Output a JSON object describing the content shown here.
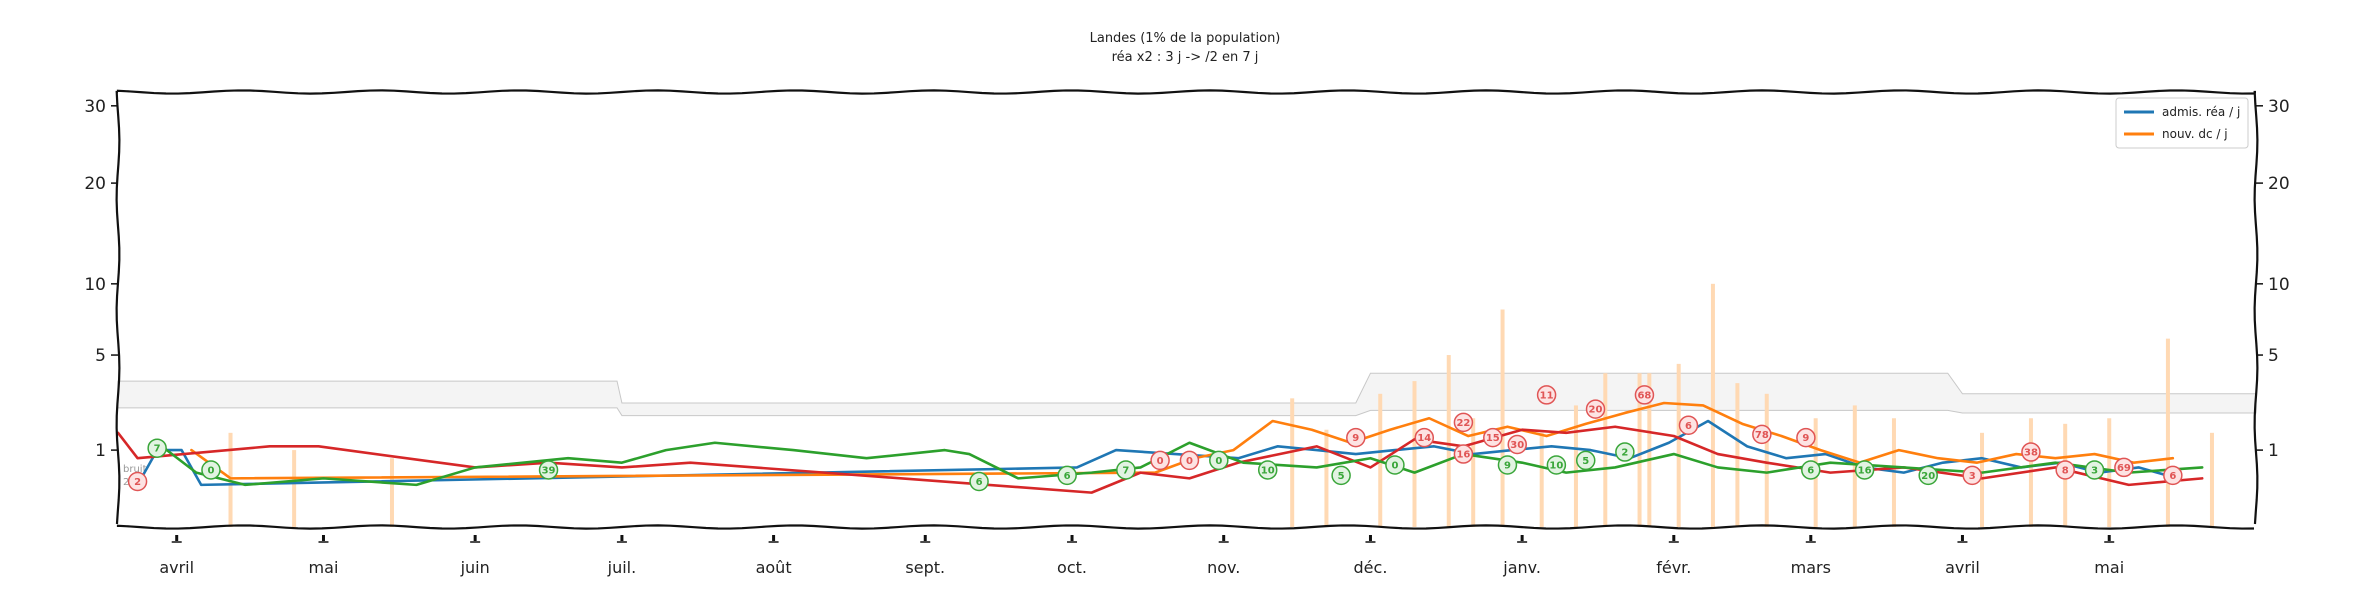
{
  "chart_data": {
    "type": "line",
    "title": "Landes (1% de la population)",
    "subtitle": "réa x2 : 3 j -> /2 en 7 j",
    "xlabel": "",
    "ylabel": "",
    "y_scale": "sqrt",
    "ylim": [
      0,
      32
    ],
    "y_ticks": [
      1,
      5,
      10,
      20,
      30
    ],
    "x_range": [
      "2020-03-20",
      "2021-05-31"
    ],
    "x_ticks": [
      {
        "date": "2020-04-01",
        "label": "avril"
      },
      {
        "date": "2020-05-01",
        "label": "mai"
      },
      {
        "date": "2020-06-01",
        "label": "juin"
      },
      {
        "date": "2020-07-01",
        "label": "juil."
      },
      {
        "date": "2020-08-01",
        "label": "août"
      },
      {
        "date": "2020-09-01",
        "label": "sept."
      },
      {
        "date": "2020-10-01",
        "label": "oct."
      },
      {
        "date": "2020-11-01",
        "label": "nov."
      },
      {
        "date": "2020-12-01",
        "label": "déc."
      },
      {
        "date": "2021-01-01",
        "label": "janv."
      },
      {
        "date": "2021-02-01",
        "label": "févr."
      },
      {
        "date": "2021-03-01",
        "label": "mars"
      },
      {
        "date": "2021-04-01",
        "label": "avril"
      },
      {
        "date": "2021-05-01",
        "label": "mai"
      }
    ],
    "noise_band_labels": [
      "bruit",
      "25%"
    ],
    "noise_band": {
      "dates": [
        "2020-03-20",
        "2020-06-30",
        "2020-07-01",
        "2020-11-28",
        "2020-12-01",
        "2021-03-29",
        "2021-04-01",
        "2021-05-31"
      ],
      "upper": [
        3.6,
        3.6,
        2.6,
        2.6,
        4.0,
        4.0,
        3.0,
        3.0
      ],
      "lower": [
        2.4,
        2.4,
        2.1,
        2.1,
        2.3,
        2.3,
        2.2,
        2.2
      ]
    },
    "legend_position": "top-right",
    "grid": false,
    "series": [
      {
        "name": "admis. réa / j",
        "color": "#1f77b4",
        "dates": [
          "2020-03-24",
          "2020-03-28",
          "2020-04-02",
          "2020-04-06",
          "2020-10-02",
          "2020-10-10",
          "2020-11-04",
          "2020-11-12",
          "2020-11-20",
          "2020-11-28",
          "2020-12-06",
          "2020-12-14",
          "2020-12-22",
          "2020-12-30",
          "2021-01-07",
          "2021-01-15",
          "2021-01-23",
          "2021-01-31",
          "2021-02-08",
          "2021-02-16",
          "2021-02-24",
          "2021-03-04",
          "2021-03-12",
          "2021-03-20",
          "2021-03-28",
          "2021-04-05",
          "2021-04-13",
          "2021-04-21",
          "2021-04-29",
          "2021-05-07",
          "2021-05-15"
        ],
        "values": [
          0.3,
          1.0,
          1.0,
          0.3,
          0.6,
          1.0,
          0.8,
          1.1,
          1.0,
          0.9,
          1.0,
          1.1,
          0.9,
          1.0,
          1.1,
          1.0,
          0.8,
          1.2,
          1.9,
          1.1,
          0.8,
          0.9,
          0.6,
          0.5,
          0.7,
          0.8,
          0.6,
          0.7,
          0.5,
          0.6,
          0.4
        ]
      },
      {
        "name": "nouv. dc / j",
        "color": "#ff7f0e",
        "dates": [
          "2020-04-04",
          "2020-04-12",
          "2020-10-18",
          "2020-10-26",
          "2020-11-03",
          "2020-11-11",
          "2020-11-19",
          "2020-11-27",
          "2020-12-05",
          "2020-12-13",
          "2020-12-21",
          "2020-12-29",
          "2021-01-06",
          "2021-01-14",
          "2021-01-22",
          "2021-01-30",
          "2021-02-07",
          "2021-02-15",
          "2021-02-23",
          "2021-03-03",
          "2021-03-11",
          "2021-03-19",
          "2021-03-27",
          "2021-04-04",
          "2021-04-12",
          "2021-04-20",
          "2021-04-28",
          "2021-05-06",
          "2021-05-14"
        ],
        "values": [
          1.0,
          0.4,
          0.5,
          0.8,
          1.0,
          1.9,
          1.6,
          1.2,
          1.6,
          2.0,
          1.4,
          1.7,
          1.4,
          1.8,
          2.2,
          2.6,
          2.5,
          1.8,
          1.4,
          1.0,
          0.7,
          1.0,
          0.8,
          0.7,
          0.9,
          0.8,
          0.9,
          0.7,
          0.8
        ]
      },
      {
        "name": "",
        "color": "#d62728",
        "dates": [
          "2020-03-20",
          "2020-03-24",
          "2020-04-20",
          "2020-04-30",
          "2020-06-01",
          "2020-06-16",
          "2020-07-01",
          "2020-07-15",
          "2020-10-05",
          "2020-10-15",
          "2020-10-25",
          "2020-11-04",
          "2020-11-20",
          "2020-12-01",
          "2020-12-10",
          "2020-12-20",
          "2021-01-01",
          "2021-01-10",
          "2021-01-20",
          "2021-02-01",
          "2021-02-10",
          "2021-02-20",
          "2021-03-05",
          "2021-03-20",
          "2021-04-05",
          "2021-04-20",
          "2021-05-05",
          "2021-05-20"
        ],
        "values": [
          1.5,
          0.8,
          1.1,
          1.1,
          0.6,
          0.7,
          0.6,
          0.7,
          0.2,
          0.5,
          0.4,
          0.7,
          1.1,
          0.6,
          1.3,
          1.1,
          1.6,
          1.5,
          1.7,
          1.4,
          0.9,
          0.7,
          0.5,
          0.6,
          0.4,
          0.6,
          0.3,
          0.4
        ]
      },
      {
        "name": "",
        "color": "#2ca02c",
        "dates": [
          "2020-03-28",
          "2020-04-05",
          "2020-04-15",
          "2020-05-01",
          "2020-05-20",
          "2020-06-01",
          "2020-06-20",
          "2020-07-01",
          "2020-07-10",
          "2020-07-20",
          "2020-08-05",
          "2020-08-20",
          "2020-09-05",
          "2020-09-10",
          "2020-09-20",
          "2020-10-05",
          "2020-10-15",
          "2020-10-25",
          "2020-11-05",
          "2020-11-20",
          "2020-12-01",
          "2020-12-10",
          "2020-12-20",
          "2021-01-01",
          "2021-01-10",
          "2021-01-20",
          "2021-02-01",
          "2021-02-10",
          "2021-02-20",
          "2021-03-05",
          "2021-03-20",
          "2021-04-05",
          "2021-04-20",
          "2021-05-05",
          "2021-05-20"
        ],
        "values": [
          1.2,
          0.5,
          0.3,
          0.4,
          0.3,
          0.6,
          0.8,
          0.7,
          1.0,
          1.2,
          1.0,
          0.8,
          1.0,
          0.9,
          0.4,
          0.5,
          0.6,
          1.2,
          0.7,
          0.6,
          0.8,
          0.5,
          0.9,
          0.7,
          0.5,
          0.6,
          0.9,
          0.6,
          0.5,
          0.7,
          0.6,
          0.5,
          0.7,
          0.5,
          0.6
        ]
      }
    ],
    "daily_bars": {
      "color": "#ffd9b3",
      "dates": [
        "2020-04-12",
        "2020-04-25",
        "2020-05-15",
        "2020-11-15",
        "2020-11-22",
        "2020-12-03",
        "2020-12-10",
        "2020-12-17",
        "2020-12-22",
        "2020-12-28",
        "2021-01-05",
        "2021-01-12",
        "2021-01-18",
        "2021-01-25",
        "2021-01-27",
        "2021-02-02",
        "2021-02-09",
        "2021-02-14",
        "2021-02-20",
        "2021-03-02",
        "2021-03-10",
        "2021-03-18",
        "2021-04-05",
        "2021-04-15",
        "2021-04-22",
        "2021-05-01",
        "2021-05-13",
        "2021-05-22"
      ],
      "values": [
        1.5,
        1.0,
        0.8,
        2.8,
        1.6,
        3.0,
        3.6,
        5.0,
        2.0,
        8.0,
        1.5,
        2.5,
        4.0,
        4.0,
        4.0,
        4.5,
        10.0,
        3.5,
        3.0,
        2.0,
        2.5,
        2.0,
        1.5,
        2.0,
        1.8,
        2.0,
        6.0,
        1.5
      ]
    },
    "annotations": [
      {
        "date": "2020-03-24",
        "y": 0.35,
        "text": "2",
        "kind": "red"
      },
      {
        "date": "2020-03-28",
        "y": 1.05,
        "text": "7",
        "kind": "green"
      },
      {
        "date": "2020-04-08",
        "y": 0.55,
        "text": "0",
        "kind": "green"
      },
      {
        "date": "2020-06-16",
        "y": 0.55,
        "text": "39",
        "kind": "green"
      },
      {
        "date": "2020-09-12",
        "y": 0.35,
        "text": "6",
        "kind": "green"
      },
      {
        "date": "2020-09-30",
        "y": 0.45,
        "text": "6",
        "kind": "green"
      },
      {
        "date": "2020-10-12",
        "y": 0.55,
        "text": "7",
        "kind": "green"
      },
      {
        "date": "2020-10-19",
        "y": 0.75,
        "text": "0",
        "kind": "red"
      },
      {
        "date": "2020-10-25",
        "y": 0.75,
        "text": "0",
        "kind": "red"
      },
      {
        "date": "2020-10-31",
        "y": 0.75,
        "text": "0",
        "kind": "green"
      },
      {
        "date": "2020-11-10",
        "y": 0.55,
        "text": "10",
        "kind": "green"
      },
      {
        "date": "2020-11-25",
        "y": 0.45,
        "text": "5",
        "kind": "green"
      },
      {
        "date": "2020-11-28",
        "y": 1.35,
        "text": "9",
        "kind": "red"
      },
      {
        "date": "2020-12-06",
        "y": 0.65,
        "text": "0",
        "kind": "green"
      },
      {
        "date": "2020-12-12",
        "y": 1.35,
        "text": "14",
        "kind": "red"
      },
      {
        "date": "2020-12-20",
        "y": 1.85,
        "text": "22",
        "kind": "red"
      },
      {
        "date": "2020-12-20",
        "y": 0.9,
        "text": "16",
        "kind": "red"
      },
      {
        "date": "2020-12-29",
        "y": 0.65,
        "text": "9",
        "kind": "green"
      },
      {
        "date": "2020-12-26",
        "y": 1.35,
        "text": "15",
        "kind": "red"
      },
      {
        "date": "2020-12-31",
        "y": 1.15,
        "text": "30",
        "kind": "red"
      },
      {
        "date": "2021-01-06",
        "y": 2.95,
        "text": "11",
        "kind": "red"
      },
      {
        "date": "2021-01-08",
        "y": 0.65,
        "text": "10",
        "kind": "green"
      },
      {
        "date": "2021-01-14",
        "y": 0.75,
        "text": "5",
        "kind": "green"
      },
      {
        "date": "2021-01-16",
        "y": 2.35,
        "text": "20",
        "kind": "red"
      },
      {
        "date": "2021-01-22",
        "y": 0.95,
        "text": "2",
        "kind": "green"
      },
      {
        "date": "2021-01-26",
        "y": 2.95,
        "text": "68",
        "kind": "red"
      },
      {
        "date": "2021-02-04",
        "y": 1.75,
        "text": "6",
        "kind": "red"
      },
      {
        "date": "2021-02-19",
        "y": 1.45,
        "text": "78",
        "kind": "red"
      },
      {
        "date": "2021-02-28",
        "y": 1.35,
        "text": "9",
        "kind": "red"
      },
      {
        "date": "2021-03-01",
        "y": 0.55,
        "text": "6",
        "kind": "green"
      },
      {
        "date": "2021-03-12",
        "y": 0.55,
        "text": "16",
        "kind": "green"
      },
      {
        "date": "2021-03-25",
        "y": 0.45,
        "text": "20",
        "kind": "green"
      },
      {
        "date": "2021-04-03",
        "y": 0.45,
        "text": "3",
        "kind": "red"
      },
      {
        "date": "2021-04-15",
        "y": 0.95,
        "text": "38",
        "kind": "red"
      },
      {
        "date": "2021-04-22",
        "y": 0.55,
        "text": "8",
        "kind": "red"
      },
      {
        "date": "2021-04-28",
        "y": 0.55,
        "text": "3",
        "kind": "green"
      },
      {
        "date": "2021-05-04",
        "y": 0.6,
        "text": "69",
        "kind": "red"
      },
      {
        "date": "2021-05-14",
        "y": 0.45,
        "text": "6",
        "kind": "red"
      }
    ]
  }
}
